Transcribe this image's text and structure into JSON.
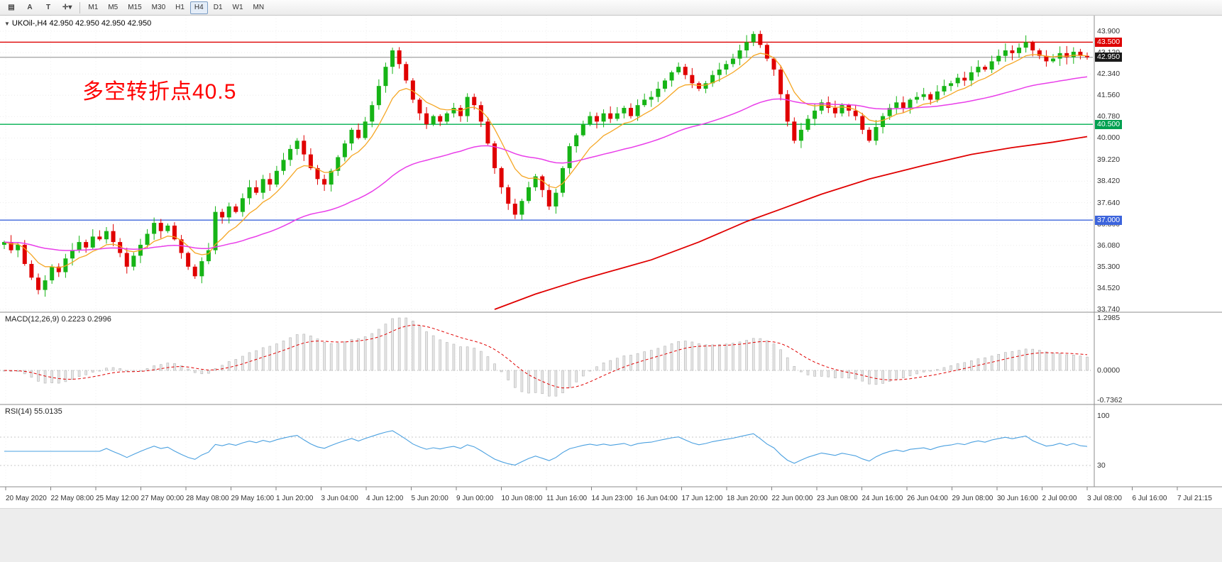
{
  "toolbar": {
    "tools": [
      {
        "name": "chart-window-icon",
        "glyph": "▤"
      },
      {
        "name": "cursor-a-icon",
        "glyph": "A"
      },
      {
        "name": "text-tool-icon",
        "glyph": "T"
      },
      {
        "name": "indicators-dropdown-icon",
        "glyph": "✛▾"
      }
    ],
    "timeframes": [
      "M1",
      "M5",
      "M15",
      "M30",
      "H1",
      "H4",
      "D1",
      "W1",
      "MN"
    ],
    "selected_timeframe": "H4"
  },
  "chart": {
    "symbol_info": "UKOil-,H4 42.950 42.950 42.950 42.950",
    "annotation": {
      "text": "多空转折点40.5",
      "color": "#ff0000"
    },
    "price_axis": [
      "43.900",
      "43.120",
      "42.340",
      "41.560",
      "40.780",
      "40.000",
      "39.220",
      "38.420",
      "37.640",
      "36.860",
      "36.080",
      "35.300",
      "34.520",
      "33.740"
    ],
    "price_badges": [
      {
        "value": "43.500",
        "price": 43.5,
        "color": "#dd0000"
      },
      {
        "value": "42.950",
        "price": 42.95,
        "color": "#1a1a1a"
      },
      {
        "value": "40.500",
        "price": 40.5,
        "color": "#00a050"
      },
      {
        "value": "37.000",
        "price": 37.0,
        "color": "#3c64dc"
      }
    ]
  },
  "macd": {
    "label": "MACD(12,26,9) 0.2223 0.2996",
    "axis_top": "1.2985",
    "axis_zero": "0.0000",
    "axis_bottom": "-0.7362"
  },
  "rsi": {
    "label": "RSI(14) 55.0135",
    "axis_top": "100",
    "axis_level": "30"
  },
  "time_axis": [
    "20 May 2020",
    "22 May 08:00",
    "25 May 12:00",
    "27 May 00:00",
    "28 May 08:00",
    "29 May 16:00",
    "1 Jun 20:00",
    "3 Jun 04:00",
    "4 Jun 12:00",
    "5 Jun 20:00",
    "9 Jun 00:00",
    "10 Jun 08:00",
    "11 Jun 16:00",
    "14 Jun 23:00",
    "16 Jun 04:00",
    "17 Jun 12:00",
    "18 Jun 20:00",
    "22 Jun 00:00",
    "23 Jun 08:00",
    "24 Jun 16:00",
    "26 Jun 04:00",
    "29 Jun 08:00",
    "30 Jun 16:00",
    "2 Jul 00:00",
    "3 Jul 08:00",
    "6 Jul 16:00",
    "7 Jul 21:15"
  ],
  "chart_data": {
    "type": "candlestick",
    "symbol": "UKOil-",
    "timeframe": "H4",
    "price_range": [
      33.74,
      43.9
    ],
    "gridline_prices": [
      43.9,
      43.12,
      42.34,
      41.56,
      40.78,
      40.0,
      39.22,
      38.42,
      37.64,
      36.86,
      36.08,
      35.3,
      34.52,
      33.74
    ],
    "hlines": [
      {
        "price": 43.5,
        "color": "#dd0000",
        "name": "resistance"
      },
      {
        "price": 42.95,
        "color": "#aaaaaa",
        "name": "bid-line"
      },
      {
        "price": 40.5,
        "color": "#00b050",
        "name": "pivot-40.5"
      },
      {
        "price": 37.0,
        "color": "#3c64dc",
        "name": "support-37"
      }
    ],
    "closes": [
      36.2,
      35.9,
      36.1,
      35.4,
      34.9,
      34.45,
      34.8,
      35.3,
      35.1,
      35.6,
      35.9,
      36.2,
      36.0,
      36.4,
      36.3,
      36.6,
      36.2,
      35.8,
      35.3,
      35.7,
      36.1,
      36.5,
      36.9,
      36.6,
      36.8,
      36.3,
      35.8,
      35.3,
      34.95,
      35.5,
      35.9,
      37.3,
      37.1,
      37.5,
      37.3,
      37.8,
      38.2,
      38.0,
      38.5,
      38.3,
      38.8,
      39.2,
      39.6,
      39.9,
      39.4,
      38.9,
      38.5,
      38.3,
      38.8,
      39.3,
      39.8,
      40.3,
      40.0,
      40.6,
      41.2,
      41.9,
      42.6,
      43.2,
      42.7,
      42.1,
      41.4,
      40.9,
      40.5,
      40.8,
      40.6,
      40.9,
      41.1,
      40.8,
      41.5,
      41.2,
      40.6,
      39.8,
      38.9,
      38.2,
      37.6,
      37.2,
      37.7,
      38.2,
      38.6,
      38.1,
      37.5,
      38.0,
      38.9,
      39.7,
      40.1,
      40.5,
      40.8,
      40.6,
      40.9,
      40.7,
      40.9,
      41.1,
      40.8,
      41.2,
      41.4,
      41.5,
      41.8,
      42.1,
      42.4,
      42.6,
      42.3,
      42.0,
      41.8,
      42.0,
      42.3,
      42.5,
      42.7,
      42.9,
      43.2,
      43.5,
      43.8,
      43.4,
      42.9,
      42.5,
      41.6,
      40.6,
      39.9,
      40.3,
      40.7,
      41.0,
      41.3,
      41.1,
      40.9,
      41.2,
      41.0,
      40.8,
      40.3,
      39.9,
      40.4,
      40.8,
      41.1,
      41.3,
      41.1,
      41.4,
      41.5,
      41.6,
      41.4,
      41.7,
      41.9,
      42.0,
      42.2,
      42.1,
      42.4,
      42.6,
      42.5,
      42.8,
      43.0,
      43.2,
      43.1,
      43.3,
      43.5,
      43.2,
      43.0,
      42.8,
      42.9,
      43.1,
      42.95,
      43.15,
      43.0,
      42.95
    ],
    "ma_fast": {
      "period": 8,
      "color": "#f5a623"
    },
    "ma_slow": {
      "period": 45,
      "color": "#e93ee9"
    },
    "ma_long": {
      "color": "#e00000",
      "waypoints": [
        [
          72,
          33.74
        ],
        [
          78,
          34.3
        ],
        [
          85,
          34.85
        ],
        [
          90,
          35.2
        ],
        [
          95,
          35.55
        ],
        [
          102,
          36.2
        ],
        [
          109,
          36.95
        ],
        [
          114,
          37.4
        ],
        [
          120,
          37.95
        ],
        [
          127,
          38.5
        ],
        [
          135,
          39.0
        ],
        [
          142,
          39.4
        ],
        [
          148,
          39.65
        ],
        [
          154,
          39.85
        ],
        [
          159,
          40.05
        ]
      ]
    },
    "macd": {
      "params": [
        12,
        26,
        9
      ],
      "value": 0.2223,
      "signal_value": 0.2996,
      "range": [
        -0.7362,
        1.2985
      ]
    },
    "rsi": {
      "period": 14,
      "value": 55.0135,
      "levels": [
        70,
        30
      ],
      "range": [
        0,
        100
      ]
    }
  }
}
